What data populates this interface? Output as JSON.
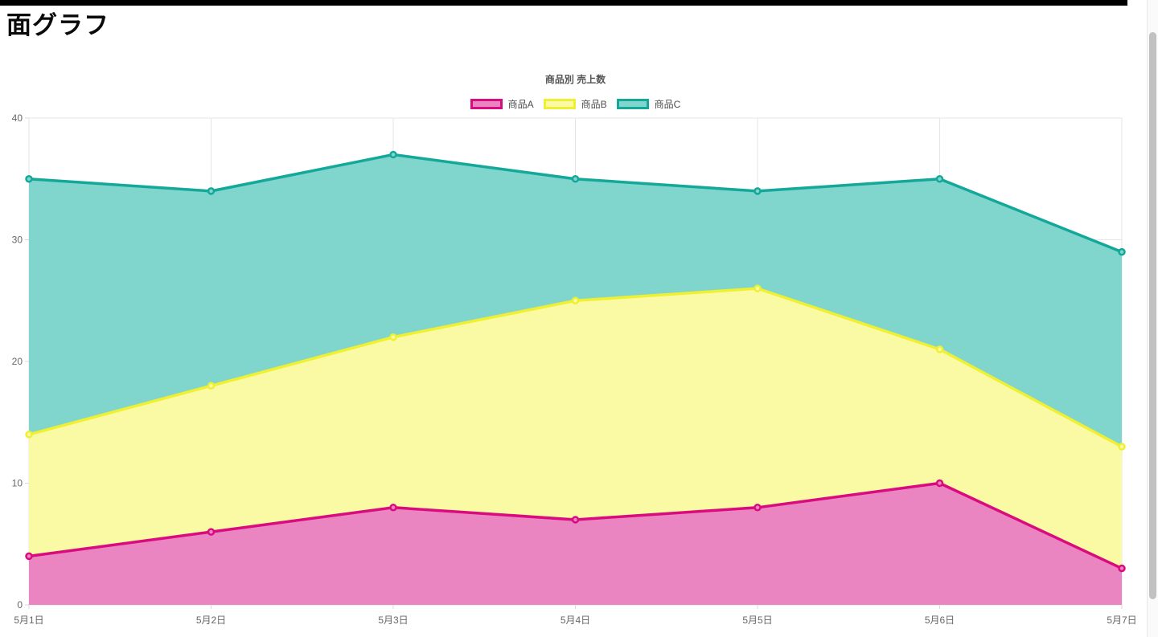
{
  "page": {
    "title": "面グラフ"
  },
  "chart_data": {
    "type": "area",
    "title": "商品別 売上数",
    "stacked": false,
    "categories": [
      "5月1日",
      "5月2日",
      "5月3日",
      "5月4日",
      "5月5日",
      "5月6日",
      "5月7日"
    ],
    "series": [
      {
        "name": "商品A",
        "values": [
          4,
          6,
          8,
          7,
          8,
          10,
          3
        ],
        "line_color": "#d90b7f",
        "fill_color": "#ea85c2"
      },
      {
        "name": "商品B",
        "values": [
          14,
          18,
          22,
          25,
          26,
          21,
          13
        ],
        "line_color": "#f0f032",
        "fill_color": "#fafaa5"
      },
      {
        "name": "商品C",
        "values": [
          35,
          34,
          37,
          35,
          34,
          35,
          29
        ],
        "line_color": "#14a89a",
        "fill_color": "#80d6cc"
      }
    ],
    "xlabel": "",
    "ylabel": "",
    "ylim": [
      0,
      40
    ],
    "y_ticks": [
      0,
      10,
      20,
      30,
      40
    ],
    "legend_position": "top",
    "grid": true
  },
  "colors": {
    "top_bar": "#000000",
    "gridline": "#e5e5e5",
    "tick_mark": "#d9d9d9",
    "tick_text": "#666666"
  }
}
